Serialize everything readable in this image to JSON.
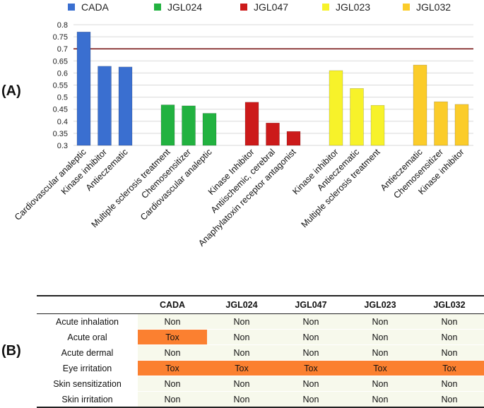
{
  "panel_labels": {
    "a": "(A)",
    "b": "(B)"
  },
  "chart_data": {
    "type": "bar",
    "title": "",
    "xlabel": "",
    "ylabel": "",
    "ylim": [
      0.3,
      0.8
    ],
    "yticks": [
      "0.3",
      "0.35",
      "0.4",
      "0.45",
      "0.5",
      "0.55",
      "0.6",
      "0.65",
      "0.7",
      "0.75",
      "0.8"
    ],
    "threshold": 0.7,
    "threshold_color": "#7b1a1a",
    "grid": true,
    "legend_position": "top",
    "series": [
      {
        "name": "CADA",
        "color": "#3a6fd0",
        "categories": [
          "Cardiovascular analeptic",
          "Kinase inhibitor",
          "Antieczematic"
        ],
        "values": [
          0.77,
          0.628,
          0.625
        ]
      },
      {
        "name": "JGL024",
        "color": "#22b240",
        "categories": [
          "Multiple sclerosis treatment",
          "Chemosensitizer",
          "Cardiovascular analeptic"
        ],
        "values": [
          0.468,
          0.464,
          0.433
        ]
      },
      {
        "name": "JGL047",
        "color": "#cc1a1a",
        "categories": [
          "Kinase Inhibitor",
          "Antiischemic, cerebral",
          "Anaphylatoxin receptor antagonist"
        ],
        "values": [
          0.479,
          0.393,
          0.358
        ]
      },
      {
        "name": "JGL023",
        "color": "#f7f22a",
        "categories": [
          "Kinase inhibitor",
          "Antieczematic",
          "Multiple sclerosis treatment"
        ],
        "values": [
          0.61,
          0.536,
          0.466
        ]
      },
      {
        "name": "JGL032",
        "color": "#fbcc2a",
        "categories": [
          "Antieczematic",
          "Chemosensitizer",
          "Kinase inhibitor"
        ],
        "values": [
          0.633,
          0.481,
          0.47
        ]
      }
    ]
  },
  "table": {
    "columns": [
      "",
      "CADA",
      "JGL024",
      "JGL047",
      "JGL023",
      "JGL032"
    ],
    "rows": [
      {
        "name": "Acute inhalation",
        "values": [
          "Non",
          "Non",
          "Non",
          "Non",
          "Non"
        ]
      },
      {
        "name": "Acute oral",
        "values": [
          "Tox",
          "Non",
          "Non",
          "Non",
          "Non"
        ]
      },
      {
        "name": "Acute dermal",
        "values": [
          "Non",
          "Non",
          "Non",
          "Non",
          "Non"
        ]
      },
      {
        "name": "Eye irritation",
        "values": [
          "Tox",
          "Tox",
          "Tox",
          "Tox",
          "Tox"
        ]
      },
      {
        "name": "Skin sensitization",
        "values": [
          "Non",
          "Non",
          "Non",
          "Non",
          "Non"
        ]
      },
      {
        "name": "Skin irritation",
        "values": [
          "Non",
          "Non",
          "Non",
          "Non",
          "Non"
        ]
      }
    ]
  }
}
